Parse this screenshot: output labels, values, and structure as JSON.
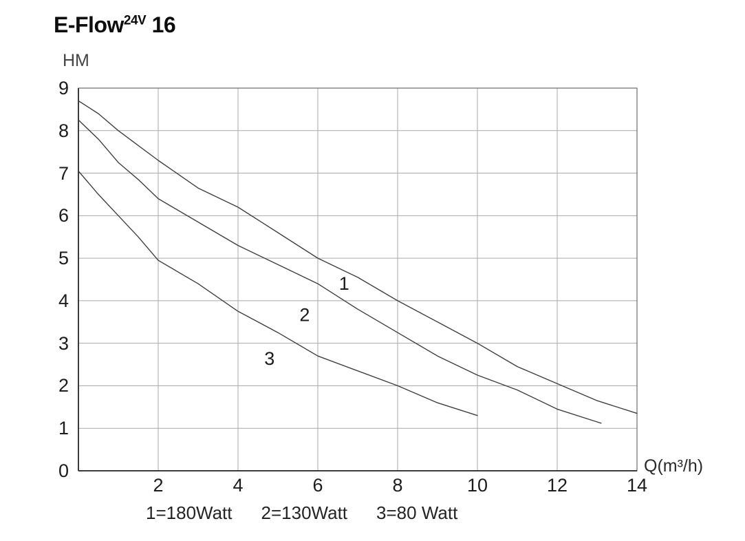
{
  "title": {
    "main": "E-Flow",
    "sup": "24V",
    "suffix": " 16"
  },
  "legend": {
    "items": [
      "1=180Watt",
      "2=130Watt",
      "3=80 Watt"
    ]
  },
  "chart_data": {
    "type": "line",
    "title": "E-Flow 24V 16",
    "xlabel": "Q(m³/h)",
    "ylabel": "HM",
    "xlim": [
      0,
      14
    ],
    "ylim": [
      0,
      9
    ],
    "xticks": [
      2,
      4,
      6,
      8,
      10,
      12,
      14
    ],
    "yticks": [
      0,
      1,
      2,
      3,
      4,
      5,
      6,
      7,
      8,
      9
    ],
    "grid": true,
    "legend_position": "below-chart",
    "colors": {
      "curve": "#3f3f3f",
      "grid": "#a9a9a9",
      "border": "#6a6a6a",
      "axis": "#3a3a3a",
      "text": "#1a1a1a",
      "background": "#ffffff"
    },
    "series": [
      {
        "name": "1",
        "legend": "1=180Watt",
        "watt": 180,
        "points": [
          [
            0,
            8.7
          ],
          [
            0.5,
            8.4
          ],
          [
            1,
            8.0
          ],
          [
            1.5,
            7.65
          ],
          [
            2,
            7.3
          ],
          [
            3,
            6.65
          ],
          [
            4,
            6.2
          ],
          [
            5,
            5.6
          ],
          [
            6,
            5.0
          ],
          [
            7,
            4.55
          ],
          [
            8,
            4.0
          ],
          [
            9,
            3.5
          ],
          [
            10,
            3.0
          ],
          [
            11,
            2.45
          ],
          [
            12,
            2.05
          ],
          [
            13,
            1.65
          ],
          [
            14,
            1.35
          ]
        ]
      },
      {
        "name": "2",
        "legend": "2=130Watt",
        "watt": 130,
        "points": [
          [
            0,
            8.25
          ],
          [
            0.5,
            7.8
          ],
          [
            1,
            7.25
          ],
          [
            1.5,
            6.85
          ],
          [
            2,
            6.4
          ],
          [
            3,
            5.85
          ],
          [
            4,
            5.3
          ],
          [
            5,
            4.85
          ],
          [
            6,
            4.4
          ],
          [
            7,
            3.8
          ],
          [
            8,
            3.25
          ],
          [
            9,
            2.7
          ],
          [
            10,
            2.25
          ],
          [
            11,
            1.9
          ],
          [
            12,
            1.45
          ],
          [
            13,
            1.15
          ],
          [
            13.1,
            1.12
          ]
        ]
      },
      {
        "name": "3",
        "legend": "3=80 Watt",
        "watt": 80,
        "points": [
          [
            0,
            7.05
          ],
          [
            0.5,
            6.5
          ],
          [
            1,
            6.0
          ],
          [
            1.5,
            5.5
          ],
          [
            2,
            4.95
          ],
          [
            3,
            4.4
          ],
          [
            4,
            3.75
          ],
          [
            5,
            3.25
          ],
          [
            6,
            2.7
          ],
          [
            7,
            2.35
          ],
          [
            8,
            2.0
          ],
          [
            9,
            1.6
          ],
          [
            10,
            1.3
          ]
        ]
      }
    ],
    "curve_labels": [
      {
        "text": "1",
        "q": 6.66,
        "h": 4.4
      },
      {
        "text": "2",
        "q": 5.67,
        "h": 3.67
      },
      {
        "text": "3",
        "q": 4.79,
        "h": 2.64
      }
    ]
  }
}
